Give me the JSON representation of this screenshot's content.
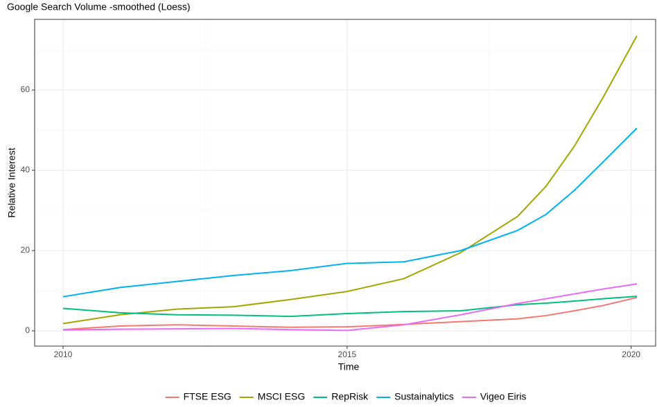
{
  "chart_data": {
    "type": "line",
    "title": "Google Search Volume -smoothed (Loess)",
    "x_label": "Time",
    "y_label": "Relative Interest",
    "x": [
      2010,
      2011,
      2012,
      2013,
      2014,
      2015,
      2016,
      2017,
      2018,
      2018.5,
      2019,
      2019.5,
      2020.1
    ],
    "series": [
      {
        "name": "FTSE ESG",
        "color": "#F8766D",
        "values": [
          0.3,
          1.2,
          1.5,
          1.2,
          0.9,
          1.0,
          1.6,
          2.3,
          3.0,
          3.8,
          5.0,
          6.3,
          8.3
        ]
      },
      {
        "name": "MSCI ESG",
        "color": "#A3A500",
        "values": [
          1.8,
          4.0,
          5.4,
          6.0,
          7.8,
          9.8,
          13.0,
          19.5,
          28.5,
          36,
          46,
          58,
          73.5
        ]
      },
      {
        "name": "RepRisk",
        "color": "#00BF7D",
        "values": [
          5.6,
          4.5,
          4.0,
          3.9,
          3.6,
          4.3,
          4.8,
          5.0,
          6.5,
          6.9,
          7.4,
          8.0,
          8.6
        ]
      },
      {
        "name": "Sustainalytics",
        "color": "#00B0F6",
        "values": [
          8.5,
          10.8,
          12.3,
          13.8,
          15,
          16.8,
          17.2,
          20,
          25,
          29,
          35,
          42,
          50.5
        ]
      },
      {
        "name": "Vigeo Eiris",
        "color": "#E76BF3",
        "values": [
          0.2,
          0.4,
          0.5,
          0.6,
          0.3,
          0.1,
          1.5,
          4,
          6.8,
          8,
          9.2,
          10.4,
          11.7
        ]
      }
    ],
    "xlim": [
      2009.5,
      2020.43
    ],
    "xticks": [
      2010,
      2015,
      2020
    ],
    "ylim": [
      -3.8,
      77.6
    ],
    "yticks": [
      0,
      20,
      40,
      60
    ],
    "grid": true,
    "legend_position": "bottom"
  }
}
